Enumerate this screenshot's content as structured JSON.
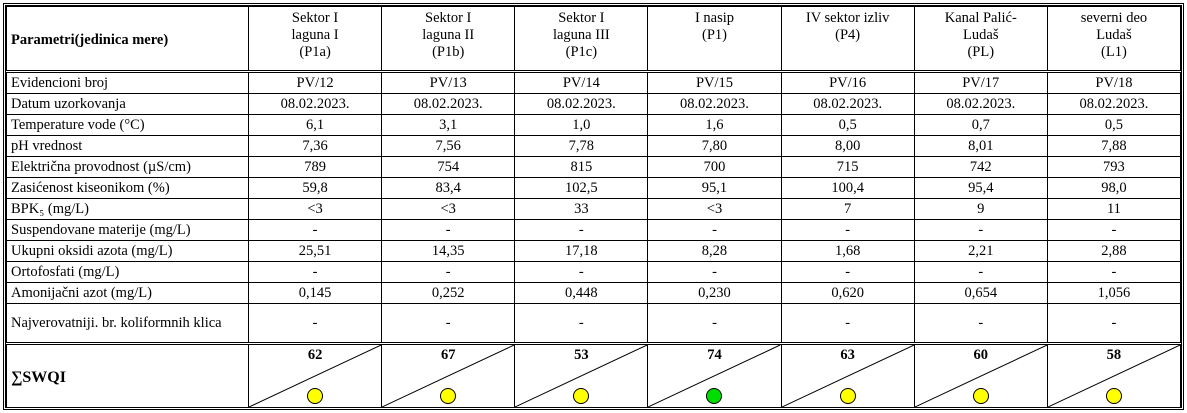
{
  "header": {
    "parameter": "Parametri(jedinica mere)",
    "sites": [
      [
        "Sektor I",
        "laguna I",
        "(P1a)"
      ],
      [
        "Sektor I",
        "laguna II",
        "(P1b)"
      ],
      [
        "Sektor I",
        "laguna III",
        "(P1c)"
      ],
      [
        "I nasip",
        "(P1)"
      ],
      [
        "IV sektor  izliv",
        "(P4)"
      ],
      [
        "Kanal Palić-",
        "Ludaš",
        "(PL)"
      ],
      [
        "severni deo",
        "Ludaš",
        "(L1)"
      ]
    ]
  },
  "rows": [
    {
      "parameter": "Evidencioni broj",
      "values": [
        "PV/12",
        "PV/13",
        "PV/14",
        "PV/15",
        "PV/16",
        "PV/17",
        "PV/18"
      ]
    },
    {
      "parameter": "Datum uzorkovanja",
      "values": [
        "08.02.2023.",
        "08.02.2023.",
        "08.02.2023.",
        "08.02.2023.",
        "08.02.2023.",
        "08.02.2023.",
        "08.02.2023."
      ]
    },
    {
      "parameter": "Temperature vode (°C)",
      "values": [
        "6,1",
        "3,1",
        "1,0",
        "1,6",
        "0,5",
        "0,7",
        "0,5"
      ]
    },
    {
      "parameter": "pH vrednost",
      "values": [
        "7,36",
        "7,56",
        "7,78",
        "7,80",
        "8,00",
        "8,01",
        "7,88"
      ]
    },
    {
      "parameter": "Električna provodnost (µS/cm)",
      "values": [
        "789",
        "754",
        "815",
        "700",
        "715",
        "742",
        "793"
      ]
    },
    {
      "parameter": "Zasićenost kiseonikom (%)",
      "values": [
        "59,8",
        "83,4",
        "102,5",
        "95,1",
        "100,4",
        "95,4",
        "98,0"
      ]
    },
    {
      "parameter": "BPK₅ (mg/L)",
      "values": [
        "<3",
        "<3",
        "33",
        "<3",
        "7",
        "9",
        "11"
      ]
    },
    {
      "parameter": "Suspendovane materije (mg/L)",
      "values": [
        "-",
        "-",
        "-",
        "-",
        "-",
        "-",
        "-"
      ]
    },
    {
      "parameter": "Ukupni oksidi azota (mg/L)",
      "values": [
        "25,51",
        "14,35",
        "17,18",
        "8,28",
        "1,68",
        "2,21",
        "2,88"
      ]
    },
    {
      "parameter": "Ortofosfati (mg/L)",
      "values": [
        "-",
        "-",
        "-",
        "-",
        "-",
        "-",
        "-"
      ]
    },
    {
      "parameter": "Amonijačni azot (mg/L)",
      "values": [
        "0,145",
        "0,252",
        "0,448",
        "0,230",
        "0,620",
        "0,654",
        "1,056"
      ]
    },
    {
      "parameter": "Najverovatniji. br. koliformnih klica",
      "values": [
        "-",
        "-",
        "-",
        "-",
        "-",
        "-",
        "-"
      ]
    }
  ],
  "swqi": {
    "label": "∑SWQI",
    "values": [
      62,
      67,
      53,
      74,
      63,
      60,
      58
    ],
    "status_colors": [
      "#ffff00",
      "#ffff00",
      "#ffff00",
      "#00dd00",
      "#ffff00",
      "#ffff00",
      "#ffff00"
    ]
  }
}
